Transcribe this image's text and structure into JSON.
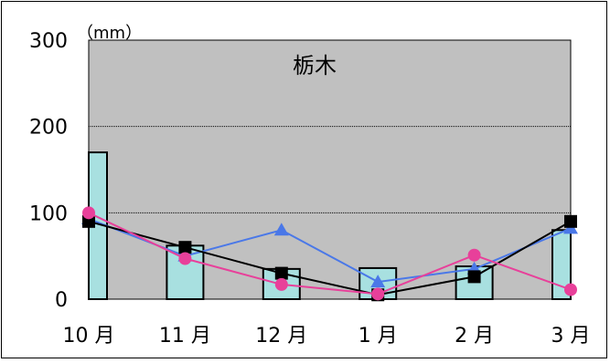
{
  "chart_data": {
    "type": "bar",
    "title": "栃木",
    "unit_label": "（mm）",
    "categories": [
      "10 月",
      "11 月",
      "12 月",
      "1 月",
      "2 月",
      "3 月"
    ],
    "ylim": [
      0,
      300
    ],
    "yticks": [
      0,
      100,
      200,
      300
    ],
    "grid": true,
    "plot_background": "#c0c0c0",
    "bars": {
      "color": "#a8e0e0",
      "values": [
        170,
        62,
        35,
        36,
        38,
        80
      ]
    },
    "series": [
      {
        "marker": "triangle",
        "color": "#4a78e8",
        "values": [
          93,
          50,
          80,
          20,
          35,
          82
        ]
      },
      {
        "marker": "square",
        "color": "#000000",
        "values": [
          90,
          60,
          30,
          5,
          26,
          90
        ]
      },
      {
        "marker": "circle",
        "color": "#e8409a",
        "values": [
          100,
          47,
          17,
          6,
          51,
          11
        ]
      }
    ]
  }
}
